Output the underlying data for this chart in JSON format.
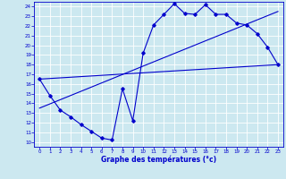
{
  "bg_color": "#cce8f0",
  "grid_color": "#ffffff",
  "line_color": "#0000cc",
  "xlim": [
    -0.5,
    23.5
  ],
  "ylim": [
    9.5,
    24.5
  ],
  "xticks": [
    0,
    1,
    2,
    3,
    4,
    5,
    6,
    7,
    8,
    9,
    10,
    11,
    12,
    13,
    14,
    15,
    16,
    17,
    18,
    19,
    20,
    21,
    22,
    23
  ],
  "yticks": [
    10,
    11,
    12,
    13,
    14,
    15,
    16,
    17,
    18,
    19,
    20,
    21,
    22,
    23,
    24
  ],
  "line1_x": [
    0,
    1,
    2,
    3,
    4,
    5,
    6,
    7,
    8,
    9,
    10,
    11,
    12,
    13,
    14,
    15,
    16,
    17,
    18,
    19,
    20,
    21,
    22,
    23
  ],
  "line1_y": [
    16.5,
    14.8,
    13.3,
    12.6,
    11.8,
    11.1,
    10.4,
    10.2,
    15.5,
    12.2,
    19.2,
    22.1,
    23.2,
    24.3,
    23.3,
    23.2,
    24.2,
    23.2,
    23.2,
    22.3,
    22.1,
    21.2,
    19.8,
    18.0
  ],
  "line2_x": [
    0,
    23
  ],
  "line2_y": [
    16.5,
    18.0
  ],
  "line3_x": [
    0,
    23
  ],
  "line3_y": [
    13.5,
    23.5
  ],
  "xlabel": "Graphe des températures (°c)",
  "tick_fontsize": 4.0,
  "xlabel_fontsize": 5.5
}
